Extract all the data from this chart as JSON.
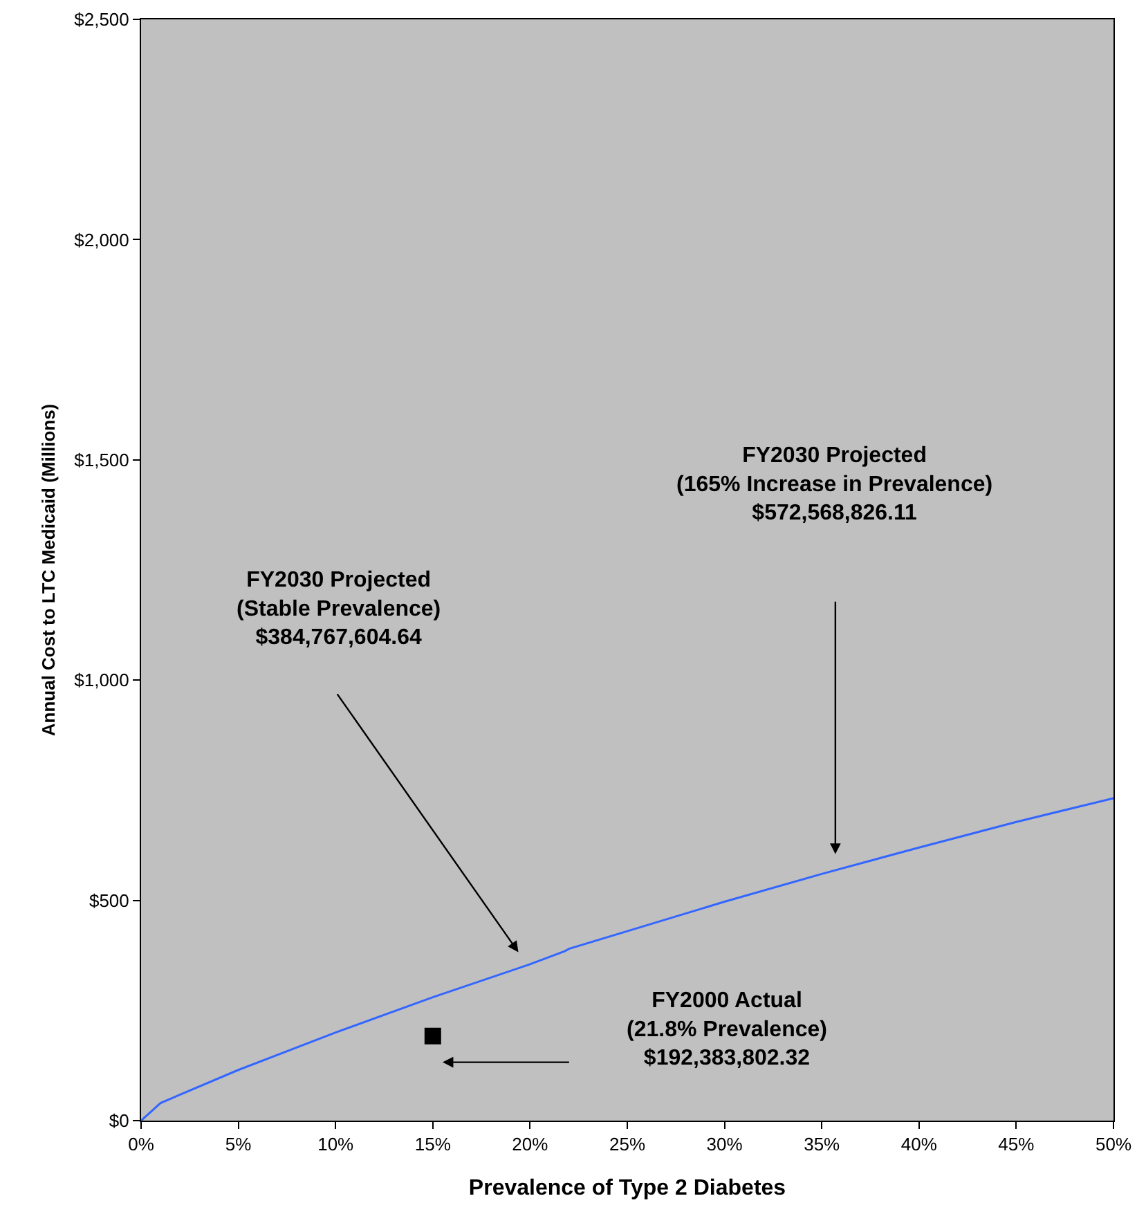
{
  "chart_data": {
    "type": "line",
    "xlabel": "Prevalence of Type 2 Diabetes",
    "ylabel": "Annual Cost to LTC Medicaid (Millions)",
    "series": [
      {
        "color": "#3366ff",
        "x": [
          0,
          1,
          5,
          10,
          15,
          20,
          21.8,
          22,
          25,
          30,
          35,
          40,
          45,
          50
        ],
        "values": [
          0,
          40,
          115,
          200,
          280,
          355,
          385,
          390,
          430,
          497,
          560,
          620,
          678,
          732
        ]
      },
      {
        "type": "scatter",
        "color": "#000000",
        "marker": "square",
        "x": [
          15
        ],
        "values": [
          192
        ]
      }
    ],
    "xlim": [
      0,
      50
    ],
    "xticks": [
      {
        "value": 0,
        "label": "0%"
      },
      {
        "value": 5,
        "label": "5%"
      },
      {
        "value": 10,
        "label": "10%"
      },
      {
        "value": 15,
        "label": "15%"
      },
      {
        "value": 20,
        "label": "20%"
      },
      {
        "value": 25,
        "label": "25%"
      },
      {
        "value": 30,
        "label": "30%"
      },
      {
        "value": 35,
        "label": "35%"
      },
      {
        "value": 40,
        "label": "40%"
      },
      {
        "value": 45,
        "label": "45%"
      },
      {
        "value": 50,
        "label": "50%"
      }
    ],
    "ylim": [
      0,
      2500
    ],
    "yticks": [
      {
        "value": 0,
        "label": "$0"
      },
      {
        "value": 500,
        "label": "$500"
      },
      {
        "value": 1000,
        "label": "$1,000"
      },
      {
        "value": 1500,
        "label": "$1,500"
      },
      {
        "value": 2000,
        "label": "$2,000"
      },
      {
        "value": 2500,
        "label": "$2,500"
      }
    ],
    "grid": false,
    "annotations": [
      "FY2030 Projected\n(Stable Prevalence)\n$384,767,604.64",
      "FY2030 Projected\n(165% Increase in Prevalence)\n$572,568,826.11",
      "FY2000 Actual\n(21.8% Prevalence)\n$192,383,802.32"
    ]
  }
}
